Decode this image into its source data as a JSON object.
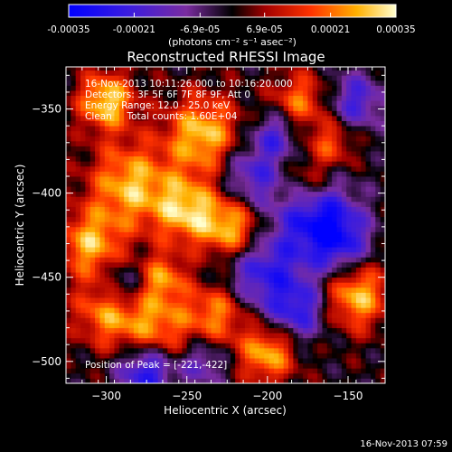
{
  "chart_data": {
    "type": "heatmap",
    "title": "Reconstructed RHESSI Image",
    "xlabel": "Heliocentric X (arcsec)",
    "ylabel": "Heliocentric Y (arcsec)",
    "xlim": [
      -325,
      -127
    ],
    "ylim": [
      -513,
      -325
    ],
    "xticks": [
      -300,
      -250,
      -200,
      -150
    ],
    "yticks": [
      -350,
      -400,
      -450,
      -500
    ],
    "colorbar": {
      "range": [
        -0.00035,
        0.00035
      ],
      "tick_values": [
        -0.00035,
        -0.00021,
        -6.9e-05,
        6.9e-05,
        0.00021,
        0.00035
      ],
      "tick_labels": [
        "-0.00035",
        "-0.00021",
        "-6.9e-05",
        "6.9e-05",
        "0.00021",
        "0.00035"
      ],
      "unit_label": "(photons cm⁻² s⁻¹ asec⁻²)"
    },
    "annotations": [
      "16-Nov-2013 10:11:26.000 to 10:16:20.000",
      "Detectors: 3F 5F 6F 7F 8F 9F, Att 0",
      "Energy Range: 12.0 - 25.0 keV",
      "Clean     Total counts: 1.60E+04"
    ],
    "peak_label": "Position of Peak = [-221,-422]",
    "peak": [
      -221,
      -422
    ],
    "grid": false
  },
  "footer": {
    "timestamp": "16-Nov-2013 07:59"
  },
  "colors": {
    "background": "#000000",
    "text": "#ffffff"
  }
}
